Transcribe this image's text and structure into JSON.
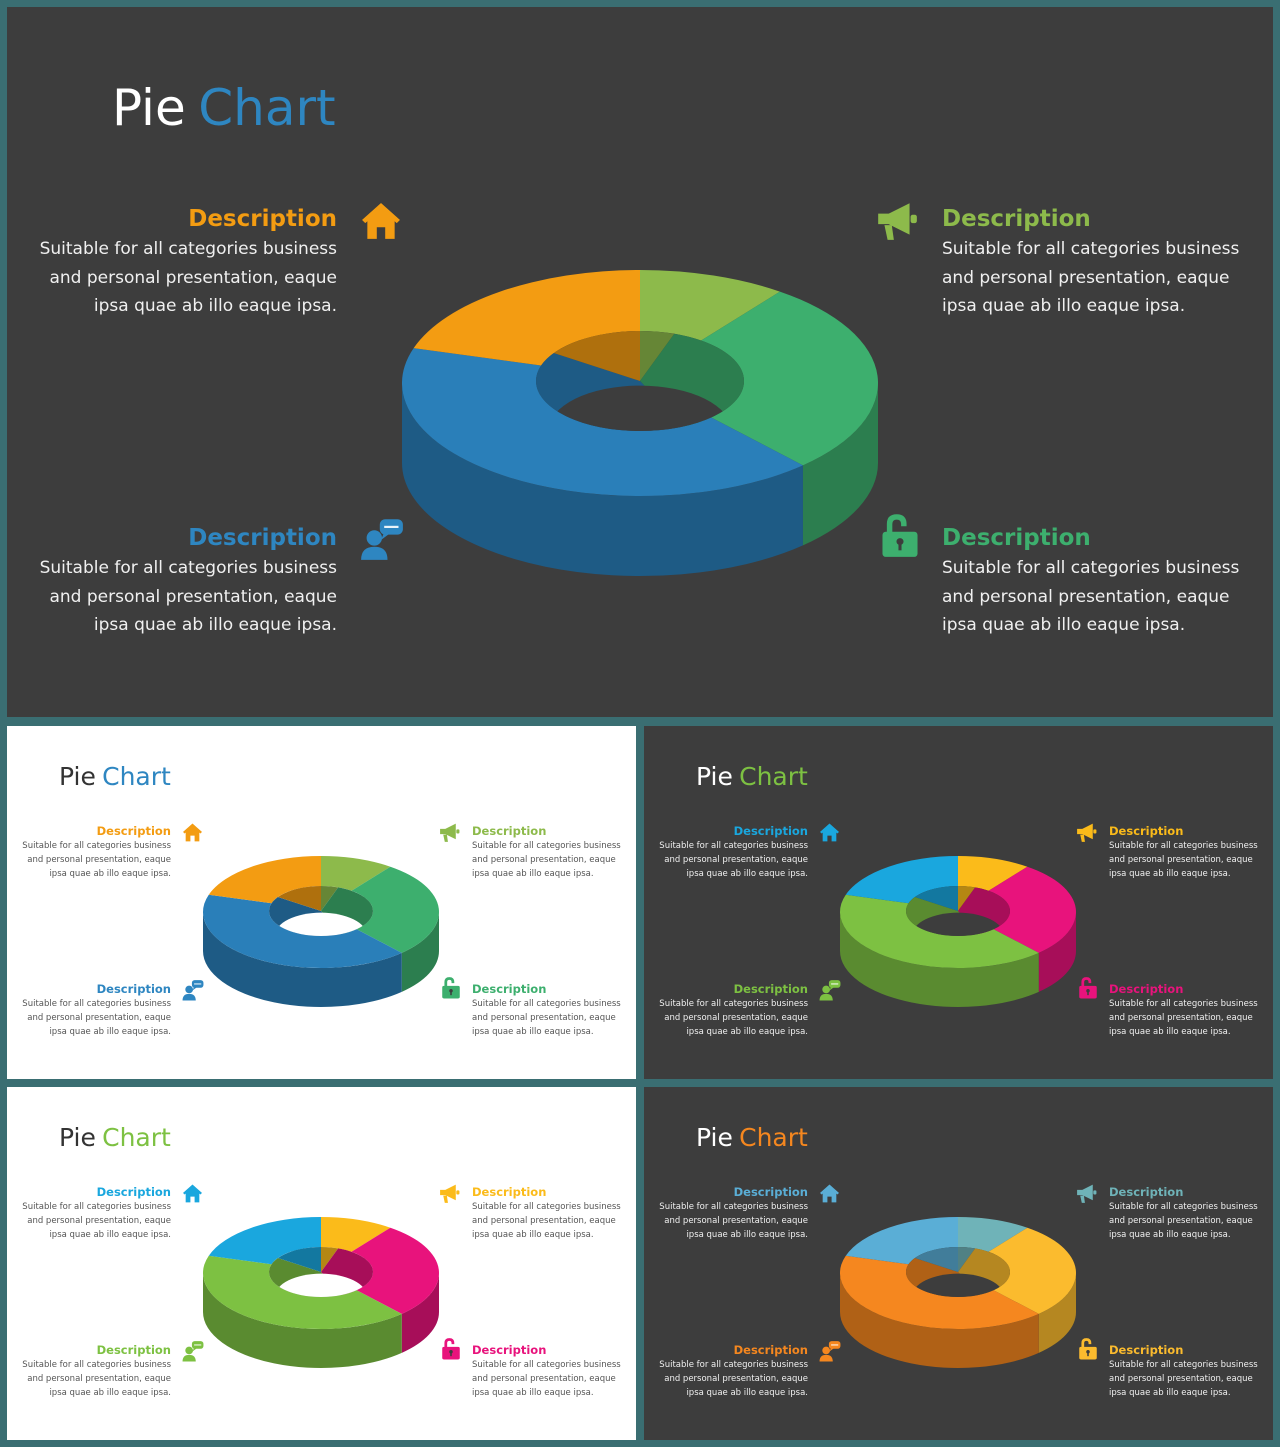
{
  "slides": [
    {
      "theme": "dark",
      "background": "#3d3d3d",
      "title_word1": "Pie",
      "title_word2": "Chart",
      "title_color1": "#ffffff",
      "title_color2": "#2e86c1",
      "text_color": "#f0f0f0",
      "descriptions": [
        {
          "heading": "Description",
          "line1": "Suitable for all categories business",
          "line2": "and personal presentation, eaque",
          "line3": "ipsa quae ab illo eaque ipsa.",
          "color": "#f39c12",
          "icon": "home-icon"
        },
        {
          "heading": "Description",
          "line1": "Suitable for all categories business",
          "line2": "and personal presentation, eaque",
          "line3": "ipsa quae ab illo eaque ipsa.",
          "color": "#8dba4b",
          "icon": "megaphone-icon"
        },
        {
          "heading": "Description",
          "line1": "Suitable for all categories business",
          "line2": "and personal presentation, eaque",
          "line3": "ipsa quae ab illo eaque ipsa.",
          "color": "#2e86c1",
          "icon": "user-chat-icon"
        },
        {
          "heading": "Description",
          "line1": "Suitable for all categories business",
          "line2": "and personal presentation, eaque",
          "line3": "ipsa quae ab illo eaque ipsa.",
          "color": "#3daf6e",
          "icon": "unlock-icon"
        }
      ],
      "segments": [
        {
          "value": 0.42,
          "color": "#2a7fb9"
        },
        {
          "value": 0.2,
          "color": "#f39c12"
        },
        {
          "value": 0.1,
          "color": "#8dba4b"
        },
        {
          "value": 0.28,
          "color": "#3daf6e"
        }
      ]
    },
    {
      "theme": "light",
      "background": "#ffffff",
      "title_word1": "Pie",
      "title_word2": "Chart",
      "title_color1": "#333333",
      "title_color2": "#2e86c1",
      "text_color": "#555555",
      "descriptions": [
        {
          "heading": "Description",
          "line1": "Suitable for all categories business",
          "line2": "and personal presentation, eaque",
          "line3": "ipsa quae ab illo eaque ipsa.",
          "color": "#f39c12",
          "icon": "home-icon"
        },
        {
          "heading": "Description",
          "line1": "Suitable for all categories business",
          "line2": "and personal presentation, eaque",
          "line3": "ipsa quae ab illo eaque ipsa.",
          "color": "#8dba4b",
          "icon": "megaphone-icon"
        },
        {
          "heading": "Description",
          "line1": "Suitable for all categories business",
          "line2": "and personal presentation, eaque",
          "line3": "ipsa quae ab illo eaque ipsa.",
          "color": "#2e86c1",
          "icon": "user-chat-icon"
        },
        {
          "heading": "Description",
          "line1": "Suitable for all categories business",
          "line2": "and personal presentation, eaque",
          "line3": "ipsa quae ab illo eaque ipsa.",
          "color": "#3daf6e",
          "icon": "unlock-icon"
        }
      ],
      "segments": [
        {
          "value": 0.42,
          "color": "#2a7fb9"
        },
        {
          "value": 0.2,
          "color": "#f39c12"
        },
        {
          "value": 0.1,
          "color": "#8dba4b"
        },
        {
          "value": 0.28,
          "color": "#3daf6e"
        }
      ]
    },
    {
      "theme": "dark",
      "background": "#3d3d3d",
      "title_word1": "Pie",
      "title_word2": "Chart",
      "title_color1": "#ffffff",
      "title_color2": "#7dc142",
      "text_color": "#f0f0f0",
      "descriptions": [
        {
          "heading": "Description",
          "line1": "Suitable for all categories business",
          "line2": "and personal presentation, eaque",
          "line3": "ipsa quae ab illo eaque ipsa.",
          "color": "#1aa7de",
          "icon": "home-icon"
        },
        {
          "heading": "Description",
          "line1": "Suitable for all categories business",
          "line2": "and personal presentation, eaque",
          "line3": "ipsa quae ab illo eaque ipsa.",
          "color": "#fbbb1a",
          "icon": "megaphone-icon"
        },
        {
          "heading": "Description",
          "line1": "Suitable for all categories business",
          "line2": "and personal presentation, eaque",
          "line3": "ipsa quae ab illo eaque ipsa.",
          "color": "#7dc142",
          "icon": "user-chat-icon"
        },
        {
          "heading": "Description",
          "line1": "Suitable for all categories business",
          "line2": "and personal presentation, eaque",
          "line3": "ipsa quae ab illo eaque ipsa.",
          "color": "#e8137c",
          "icon": "unlock-icon"
        }
      ],
      "segments": [
        {
          "value": 0.42,
          "color": "#7dc142"
        },
        {
          "value": 0.2,
          "color": "#1aa7de"
        },
        {
          "value": 0.1,
          "color": "#fbbb1a"
        },
        {
          "value": 0.28,
          "color": "#e8137c"
        }
      ]
    },
    {
      "theme": "light",
      "background": "#ffffff",
      "title_word1": "Pie",
      "title_word2": "Chart",
      "title_color1": "#333333",
      "title_color2": "#7dc142",
      "text_color": "#555555",
      "descriptions": [
        {
          "heading": "Description",
          "line1": "Suitable for all categories business",
          "line2": "and personal presentation, eaque",
          "line3": "ipsa quae ab illo eaque ipsa.",
          "color": "#1aa7de",
          "icon": "home-icon"
        },
        {
          "heading": "Description",
          "line1": "Suitable for all categories business",
          "line2": "and personal presentation, eaque",
          "line3": "ipsa quae ab illo eaque ipsa.",
          "color": "#fbbb1a",
          "icon": "megaphone-icon"
        },
        {
          "heading": "Description",
          "line1": "Suitable for all categories business",
          "line2": "and personal presentation, eaque",
          "line3": "ipsa quae ab illo eaque ipsa.",
          "color": "#7dc142",
          "icon": "user-chat-icon"
        },
        {
          "heading": "Description",
          "line1": "Suitable for all categories business",
          "line2": "and personal presentation, eaque",
          "line3": "ipsa quae ab illo eaque ipsa.",
          "color": "#e8137c",
          "icon": "unlock-icon"
        }
      ],
      "segments": [
        {
          "value": 0.42,
          "color": "#7dc142"
        },
        {
          "value": 0.2,
          "color": "#1aa7de"
        },
        {
          "value": 0.1,
          "color": "#fbbb1a"
        },
        {
          "value": 0.28,
          "color": "#e8137c"
        }
      ]
    },
    {
      "theme": "dark",
      "background": "#3d3d3d",
      "title_word1": "Pie",
      "title_word2": "Chart",
      "title_color1": "#ffffff",
      "title_color2": "#f5871f",
      "text_color": "#f0f0f0",
      "descriptions": [
        {
          "heading": "Description",
          "line1": "Suitable for all categories business",
          "line2": "and personal presentation, eaque",
          "line3": "ipsa quae ab illo eaque ipsa.",
          "color": "#5aaed6",
          "icon": "home-icon"
        },
        {
          "heading": "Description",
          "line1": "Suitable for all categories business",
          "line2": "and personal presentation, eaque",
          "line3": "ipsa quae ab illo eaque ipsa.",
          "color": "#6fb3b8",
          "icon": "megaphone-icon"
        },
        {
          "heading": "Description",
          "line1": "Suitable for all categories business",
          "line2": "and personal presentation, eaque",
          "line3": "ipsa quae ab illo eaque ipsa.",
          "color": "#f5871f",
          "icon": "user-chat-icon"
        },
        {
          "heading": "Description",
          "line1": "Suitable for all categories business",
          "line2": "and personal presentation, eaque",
          "line3": "ipsa quae ab illo eaque ipsa.",
          "color": "#fbbb2e",
          "icon": "unlock-icon"
        }
      ],
      "segments": [
        {
          "value": 0.42,
          "color": "#f5871f"
        },
        {
          "value": 0.2,
          "color": "#5aaed6"
        },
        {
          "value": 0.1,
          "color": "#6fb3b8"
        },
        {
          "value": 0.28,
          "color": "#fbbb2e"
        }
      ]
    }
  ]
}
